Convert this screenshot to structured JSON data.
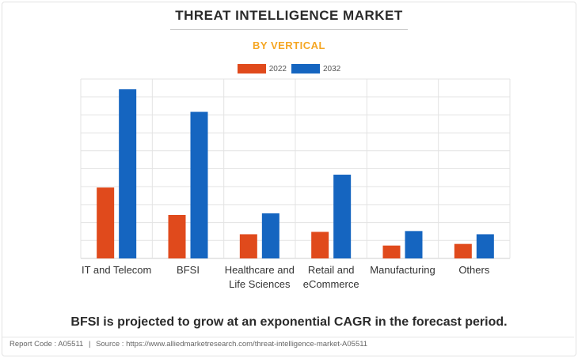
{
  "title": "THREAT INTELLIGENCE MARKET",
  "subtitle": "BY VERTICAL",
  "colors": {
    "accent": "#f5a623",
    "series_2022": "#e04a1c",
    "series_2032": "#1565c0",
    "grid": "#e3e3e3",
    "axis": "#cfcfcf"
  },
  "footer": {
    "statement": "BFSI is projected to grow at an exponential CAGR in the forecast period.",
    "report_code": "Report Code : A05511",
    "separator": "|",
    "source": "Source : https://www.alliedmarketresearch.com/threat-intelligence-market-A05511"
  },
  "chart_data": {
    "type": "bar",
    "title": "THREAT INTELLIGENCE MARKET",
    "subtitle": "BY VERTICAL",
    "xlabel": "",
    "ylabel": "",
    "y_axis_labels_shown": false,
    "grid": true,
    "legend_position": "top-center",
    "ylim": [
      0,
      10.5
    ],
    "categories": [
      "IT and Telecom",
      "BFSI",
      "Healthcare and Life Sciences",
      "Retail and eCommerce",
      "Manufacturing",
      "Others"
    ],
    "category_lines": [
      [
        "IT and Telecom"
      ],
      [
        "BFSI"
      ],
      [
        "Healthcare and",
        "Life Sciences"
      ],
      [
        "Retail and",
        "eCommerce"
      ],
      [
        "Manufacturing"
      ],
      [
        "Others"
      ]
    ],
    "series": [
      {
        "name": "2022",
        "color": "#e04a1c",
        "values": [
          4.4,
          2.7,
          1.5,
          1.65,
          0.8,
          0.9
        ]
      },
      {
        "name": "2032",
        "color": "#1565c0",
        "values": [
          10.5,
          9.1,
          2.8,
          5.2,
          1.7,
          1.5
        ]
      }
    ]
  }
}
